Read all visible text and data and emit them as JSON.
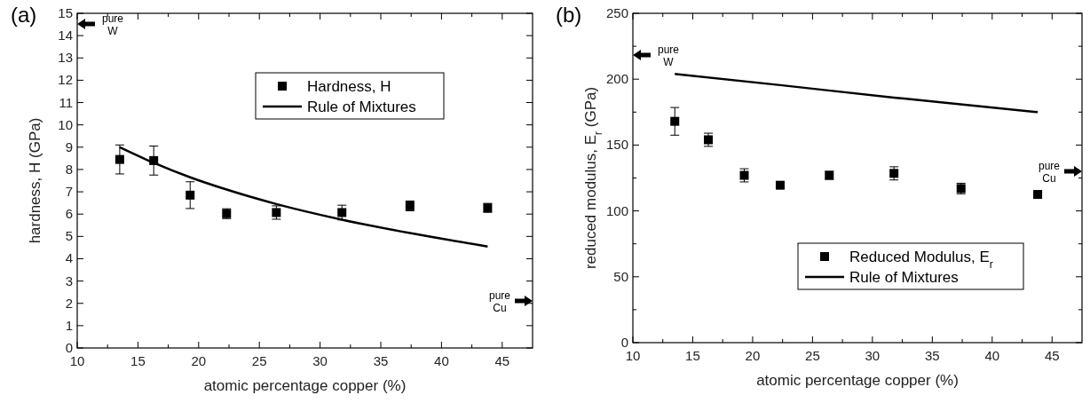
{
  "chart_data": [
    {
      "type": "scatter",
      "xlabel": "atomic percentage copper (%)",
      "ylabel": "hardness, H (GPa)",
      "annotations": [
        "(a)",
        "pure W",
        "pure Cu"
      ],
      "xlim": [
        10,
        47.5
      ],
      "xticks": [
        10,
        {
          "value": 12.5,
          "label": null
        },
        15,
        {
          "value": 17.5,
          "label": null
        },
        20,
        {
          "value": 22.5,
          "label": null
        },
        25,
        {
          "value": 27.5,
          "label": null
        },
        30,
        {
          "value": 32.5,
          "label": null
        },
        35,
        {
          "value": 37.5,
          "label": null
        },
        40,
        {
          "value": 42.5,
          "label": null
        },
        45
      ],
      "ylim": [
        0,
        15
      ],
      "yticks": [
        0,
        1,
        2,
        3,
        4,
        5,
        6,
        7,
        8,
        9,
        10,
        11,
        12,
        13,
        14,
        15
      ],
      "legend": "top right",
      "series": [
        {
          "name": "Hardness, H",
          "marker": "square",
          "color": "#000000",
          "x": [
            13.5,
            16.3,
            19.3,
            22.3,
            26.4,
            31.8,
            37.4,
            43.8
          ],
          "values": [
            8.45,
            8.4,
            6.85,
            6.02,
            6.07,
            6.07,
            6.37,
            6.28
          ],
          "errors": [
            0.65,
            0.65,
            0.6,
            0.22,
            0.3,
            0.33,
            0.22,
            0.2
          ]
        },
        {
          "name": "Rule of Mixtures",
          "type": "line",
          "color": "#000000",
          "line_style": "solid",
          "x": [
            13.5,
            16.3,
            19.3,
            22.3,
            26.4,
            31.8,
            37.4,
            43.8
          ],
          "values": [
            9.0,
            8.3,
            7.65,
            7.1,
            6.45,
            5.75,
            5.15,
            4.55
          ]
        }
      ]
    },
    {
      "type": "scatter",
      "xlabel": "atomic percentage copper (%)",
      "ylabel": "reduced modulus, E$_{r}$ (GPa)",
      "annotations": [
        "(b)",
        "pure W",
        "pure Cu"
      ],
      "xlim": [
        10,
        47.5
      ],
      "xticks": [
        10,
        {
          "value": 12.5,
          "label": null
        },
        15,
        {
          "value": 17.5,
          "label": null
        },
        20,
        {
          "value": 22.5,
          "label": null
        },
        25,
        {
          "value": 27.5,
          "label": null
        },
        30,
        {
          "value": 32.5,
          "label": null
        },
        35,
        {
          "value": 37.5,
          "label": null
        },
        40,
        {
          "value": 42.5,
          "label": null
        },
        45
      ],
      "ylim": [
        0,
        250
      ],
      "yticks": [
        0,
        {
          "value": 25,
          "label": null
        },
        50,
        {
          "value": 75,
          "label": null
        },
        100,
        {
          "value": 125,
          "label": null
        },
        150,
        {
          "value": 175,
          "label": null
        },
        200,
        {
          "value": 225,
          "label": null
        },
        250
      ],
      "legend": "bottom right",
      "series": [
        {
          "name": "Reduced Modulus, E$_{r}$",
          "marker": "square",
          "color": "#000000",
          "x": [
            13.5,
            16.3,
            19.3,
            22.3,
            26.4,
            31.8,
            37.4,
            43.8
          ],
          "values": [
            168,
            154,
            127,
            119.5,
            127,
            128.5,
            117,
            112.5
          ],
          "errors": [
            10.5,
            5,
            5,
            2,
            3,
            5,
            4,
            2
          ]
        },
        {
          "name": "Rule of Mixtures",
          "type": "line",
          "color": "#000000",
          "line_style": "solid",
          "x": [
            13.5,
            22.3,
            31.8,
            43.8
          ],
          "values": [
            204,
            195.5,
            186,
            175
          ]
        }
      ]
    }
  ]
}
